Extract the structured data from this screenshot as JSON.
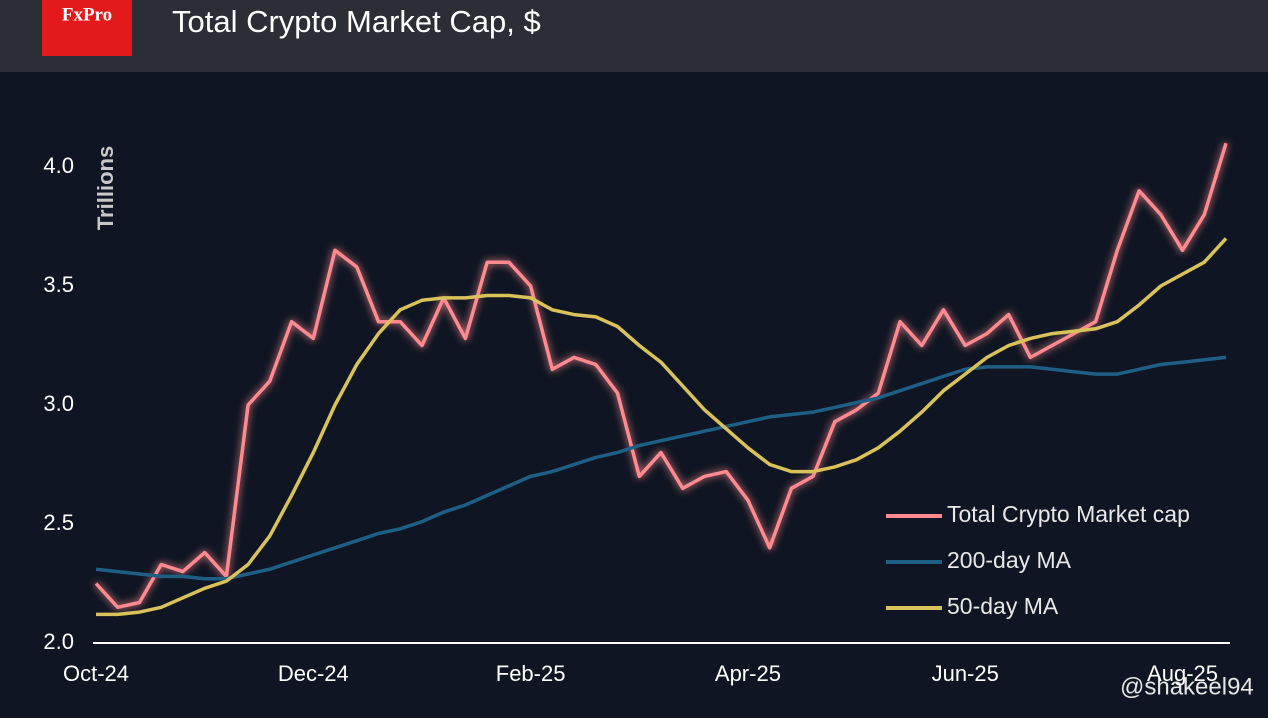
{
  "chart_data": {
    "type": "line",
    "logo": "FxPro",
    "title": "Total Crypto Market Cap, $",
    "y_label": "Trillions",
    "watermark": "@shakeel94",
    "categories": [
      "Oct-24",
      null,
      null,
      null,
      null,
      null,
      null,
      null,
      null,
      null,
      "Dec-24",
      null,
      null,
      null,
      null,
      null,
      null,
      null,
      null,
      null,
      "Feb-25",
      null,
      null,
      null,
      null,
      null,
      null,
      null,
      null,
      null,
      "Apr-25",
      null,
      null,
      null,
      null,
      null,
      null,
      null,
      null,
      null,
      "Jun-25",
      null,
      null,
      null,
      null,
      null,
      null,
      null,
      null,
      null,
      "Aug-25",
      null,
      null
    ],
    "series": [
      {
        "name": "Total Crypto Market cap",
        "color": "#ff8a8f",
        "values": [
          2.25,
          2.15,
          2.17,
          2.33,
          2.3,
          2.38,
          2.28,
          3.0,
          3.1,
          3.35,
          3.28,
          3.65,
          3.58,
          3.35,
          3.35,
          3.25,
          3.45,
          3.28,
          3.6,
          3.6,
          3.5,
          3.15,
          3.2,
          3.17,
          3.05,
          2.7,
          2.8,
          2.65,
          2.7,
          2.72,
          2.6,
          2.4,
          2.65,
          2.7,
          2.93,
          2.98,
          3.05,
          3.35,
          3.25,
          3.4,
          3.25,
          3.3,
          3.38,
          3.2,
          3.25,
          3.3,
          3.35,
          3.65,
          3.9,
          3.8,
          3.65,
          3.8,
          4.1
        ]
      },
      {
        "name": "200-day MA",
        "color": "#1f5f86",
        "values": [
          2.31,
          2.3,
          2.29,
          2.28,
          2.28,
          2.27,
          2.27,
          2.29,
          2.31,
          2.34,
          2.37,
          2.4,
          2.43,
          2.46,
          2.48,
          2.51,
          2.55,
          2.58,
          2.62,
          2.66,
          2.7,
          2.72,
          2.75,
          2.78,
          2.8,
          2.83,
          2.85,
          2.87,
          2.89,
          2.91,
          2.93,
          2.95,
          2.96,
          2.97,
          2.99,
          3.01,
          3.03,
          3.06,
          3.09,
          3.12,
          3.15,
          3.16,
          3.16,
          3.16,
          3.15,
          3.14,
          3.13,
          3.13,
          3.15,
          3.17,
          3.18,
          3.19,
          3.2
        ]
      },
      {
        "name": "50-day MA",
        "color": "#d9c25a",
        "values": [
          2.12,
          2.12,
          2.13,
          2.15,
          2.19,
          2.23,
          2.26,
          2.33,
          2.45,
          2.62,
          2.8,
          3.0,
          3.17,
          3.3,
          3.4,
          3.44,
          3.45,
          3.45,
          3.46,
          3.46,
          3.45,
          3.4,
          3.38,
          3.37,
          3.33,
          3.25,
          3.18,
          3.08,
          2.98,
          2.9,
          2.82,
          2.75,
          2.72,
          2.72,
          2.74,
          2.77,
          2.82,
          2.89,
          2.97,
          3.06,
          3.13,
          3.2,
          3.25,
          3.28,
          3.3,
          3.31,
          3.32,
          3.35,
          3.42,
          3.5,
          3.55,
          3.6,
          3.7
        ]
      }
    ],
    "ylim": [
      2.0,
      4.3
    ],
    "yticks": [
      {
        "value": 2.0,
        "label": "2.0"
      },
      2.5,
      {
        "value": 3.0,
        "label": "3.0"
      },
      3.5,
      {
        "value": 4.0,
        "label": "4.0"
      }
    ],
    "grid": false,
    "legend": "lower right"
  }
}
